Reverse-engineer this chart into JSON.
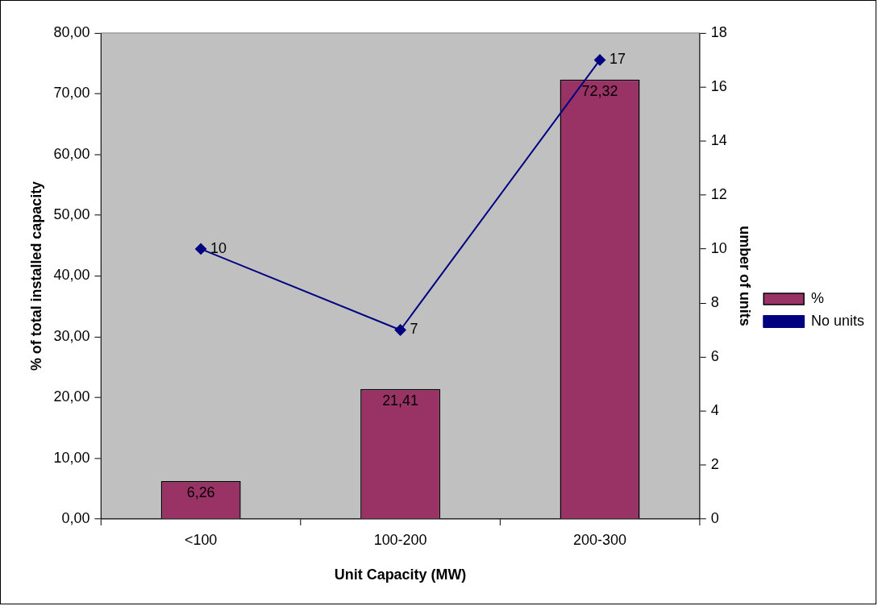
{
  "chart_data": {
    "type": "bar",
    "xlabel": "Unit Capacity (MW)",
    "ylabel": "% of total installed capacity",
    "y2label": "umber of units",
    "categories": [
      "<100",
      "100-200",
      "200-300"
    ],
    "series": [
      {
        "name": "%",
        "color": "#993366",
        "values": [
          6.26,
          21.41,
          72.32
        ],
        "value_labels": [
          "6,26",
          "21,41",
          "72,32"
        ]
      },
      {
        "name": "No units",
        "type": "line",
        "axis": "y2",
        "color": "#000080",
        "values": [
          10,
          7,
          17
        ],
        "value_labels": [
          "10",
          "7",
          "17"
        ]
      }
    ],
    "ylim": [
      0,
      80
    ],
    "yticks": [
      {
        "value": 0,
        "label": "0,00"
      },
      {
        "value": 10,
        "label": "10,00"
      },
      {
        "value": 20,
        "label": "20,00"
      },
      {
        "value": 30,
        "label": "30,00"
      },
      {
        "value": 40,
        "label": "40,00"
      },
      {
        "value": 50,
        "label": "50,00"
      },
      {
        "value": 60,
        "label": "60,00"
      },
      {
        "value": 70,
        "label": "70,00"
      },
      {
        "value": 80,
        "label": "80,00"
      }
    ],
    "y2lim": [
      0,
      18
    ],
    "y2ticks": [
      0,
      2,
      4,
      6,
      8,
      10,
      12,
      14,
      16,
      18
    ],
    "marker": "diamond",
    "legend": "right",
    "grid": false
  }
}
